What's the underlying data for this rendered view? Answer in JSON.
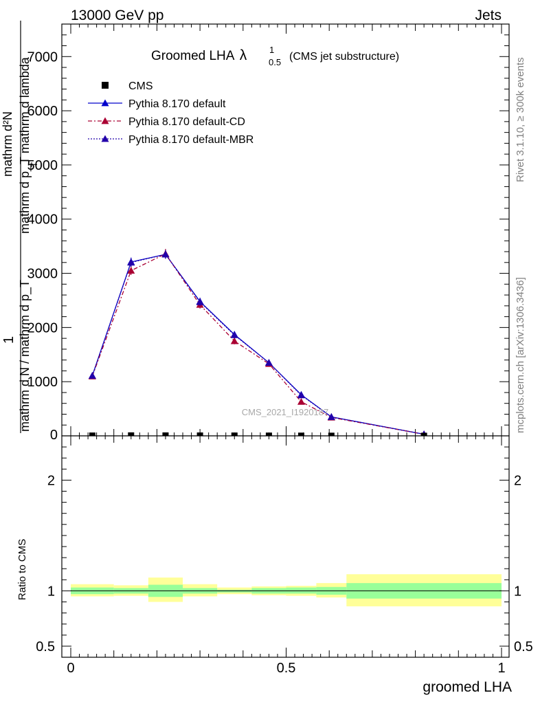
{
  "header": {
    "left": "13000 GeV pp",
    "right": "Jets"
  },
  "side": {
    "top": "Rivet 3.1.10, ≥ 300k events",
    "bottom": "mcplots.cern.ch [arXiv:1306.3436]"
  },
  "colors": {
    "cms": "#000000",
    "pythia_default": "#0000cc",
    "pythia_cd": "#aa0033",
    "pythia_mbr": "#2200aa",
    "band_inner": "#99ff99",
    "band_outer": "#ffff99"
  },
  "chart_data": [
    {
      "type": "line",
      "title_main": "Groomed LHA",
      "title_lambda": "λ",
      "title_sub": "0.5",
      "title_sup": "1",
      "title_suffix": "(CMS jet substructure)",
      "ylabel_num": "mathrm d²N",
      "ylabel_den": "mathrm d p_T mathrm d lambda",
      "ylabel_left_num": "1",
      "ylabel_left_den": "mathrm d N / mathrm d p_T",
      "ylabel_den_sub": "T",
      "ylim": [
        0,
        7600
      ],
      "xlim": [
        0,
        1
      ],
      "yticks": [
        {
          "v": 1000,
          "label": "1000"
        },
        {
          "v": 2000,
          "label": "2000"
        },
        {
          "v": 3000,
          "label": "3000"
        },
        {
          "v": 4000,
          "label": "4000"
        },
        {
          "v": 5000,
          "label": "5000"
        },
        {
          "v": 6000,
          "label": "6000"
        },
        {
          "v": 7000,
          "label": "7000"
        }
      ],
      "y0_label": "0",
      "watermark": "CMS_2021_I1920187",
      "legend": [
        {
          "name": "CMS",
          "style": "cms"
        },
        {
          "name": "Pythia 8.170 default",
          "style": "pythia_default"
        },
        {
          "name": "Pythia 8.170 default-CD",
          "style": "pythia_cd"
        },
        {
          "name": "Pythia 8.170 default-MBR",
          "style": "pythia_mbr"
        }
      ],
      "bins": [
        [
          0.0,
          0.1
        ],
        [
          0.1,
          0.18
        ],
        [
          0.18,
          0.26
        ],
        [
          0.26,
          0.34
        ],
        [
          0.34,
          0.42
        ],
        [
          0.42,
          0.5
        ],
        [
          0.5,
          0.57
        ],
        [
          0.57,
          0.64
        ],
        [
          0.64,
          1.0
        ]
      ],
      "cms": {
        "x": [
          0.05,
          0.14,
          0.22,
          0.3,
          0.38,
          0.46,
          0.535,
          0.605,
          0.82
        ],
        "y": [
          5,
          8,
          7,
          6,
          5,
          4,
          3,
          2,
          1
        ]
      },
      "series": [
        {
          "name": "Pythia 8.170 default",
          "x": [
            0.05,
            0.14,
            0.22,
            0.3,
            0.38,
            0.46,
            0.535,
            0.605,
            0.82
          ],
          "y": [
            1110,
            3210,
            3350,
            2480,
            1870,
            1350,
            760,
            350,
            30
          ],
          "err": [
            40,
            80,
            80,
            70,
            60,
            50,
            40,
            30,
            10
          ]
        },
        {
          "name": "Pythia 8.170 default-CD",
          "x": [
            0.05,
            0.14,
            0.22,
            0.3,
            0.38,
            0.46,
            0.535,
            0.605,
            0.82
          ],
          "y": [
            1100,
            3050,
            3360,
            2420,
            1750,
            1330,
            630,
            340,
            30
          ],
          "err": [
            40,
            80,
            90,
            70,
            60,
            50,
            40,
            30,
            10
          ]
        },
        {
          "name": "Pythia 8.170 default-MBR",
          "x": [
            0.05,
            0.14,
            0.22,
            0.3,
            0.38,
            0.46,
            0.535,
            0.605,
            0.82
          ],
          "y": [
            1110,
            3200,
            3350,
            2470,
            1860,
            1350,
            750,
            350,
            30
          ],
          "err": [
            40,
            80,
            80,
            70,
            60,
            50,
            40,
            30,
            10
          ]
        }
      ]
    },
    {
      "type": "area",
      "ylabel": "Ratio to CMS",
      "xlabel": "groomed LHA",
      "ylim": [
        0.4,
        2.4
      ],
      "xlim": [
        0,
        1
      ],
      "yticks": [
        {
          "v": 0.5,
          "label": "0.5"
        },
        {
          "v": 1,
          "label": "1"
        },
        {
          "v": 2,
          "label": "2"
        }
      ],
      "xticks": [
        {
          "v": 0,
          "label": "0"
        },
        {
          "v": 0.5,
          "label": "0.5"
        },
        {
          "v": 1,
          "label": "1"
        }
      ],
      "bands": [
        {
          "x0": 0.0,
          "x1": 0.1,
          "inner": [
            0.97,
            1.03
          ],
          "outer": [
            0.95,
            1.06
          ]
        },
        {
          "x0": 0.1,
          "x1": 0.18,
          "inner": [
            0.975,
            1.025
          ],
          "outer": [
            0.955,
            1.05
          ]
        },
        {
          "x0": 0.18,
          "x1": 0.26,
          "inner": [
            0.945,
            1.055
          ],
          "outer": [
            0.9,
            1.12
          ]
        },
        {
          "x0": 0.26,
          "x1": 0.34,
          "inner": [
            0.975,
            1.025
          ],
          "outer": [
            0.95,
            1.06
          ]
        },
        {
          "x0": 0.34,
          "x1": 0.42,
          "inner": [
            0.985,
            1.01
          ],
          "outer": [
            0.97,
            1.03
          ]
        },
        {
          "x0": 0.42,
          "x1": 0.5,
          "inner": [
            0.975,
            1.025
          ],
          "outer": [
            0.96,
            1.04
          ]
        },
        {
          "x0": 0.5,
          "x1": 0.57,
          "inner": [
            0.975,
            1.03
          ],
          "outer": [
            0.955,
            1.045
          ]
        },
        {
          "x0": 0.57,
          "x1": 0.64,
          "inner": [
            0.965,
            1.035
          ],
          "outer": [
            0.94,
            1.07
          ]
        },
        {
          "x0": 0.64,
          "x1": 1.0,
          "inner": [
            0.93,
            1.07
          ],
          "outer": [
            0.86,
            1.15
          ]
        }
      ],
      "reference": 1
    }
  ]
}
